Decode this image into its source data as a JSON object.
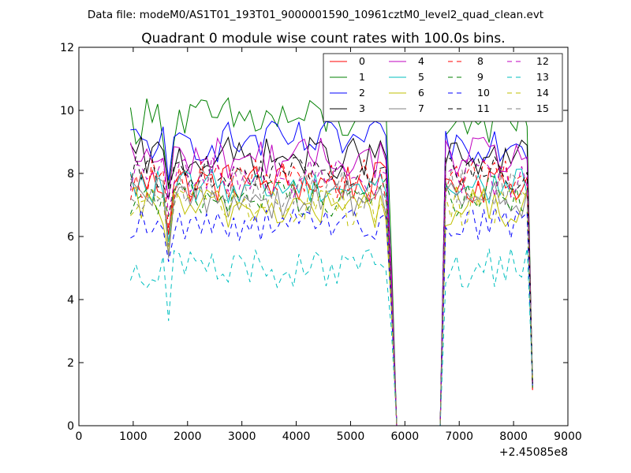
{
  "figure": {
    "suptitle": "Data file: modeM0/AS1T01_193T01_9000001590_10961cztM0_level2_quad_clean.evt"
  },
  "chart_data": {
    "type": "line",
    "title": "Quadrant 0 module wise count rates with 100.0s bins.",
    "xlabel": "",
    "ylabel": "",
    "x_offset_label": "+2.45085e8",
    "xlim": [
      0,
      9000
    ],
    "ylim": [
      0,
      12
    ],
    "x_ticks": [
      0,
      1000,
      2000,
      3000,
      4000,
      5000,
      6000,
      7000,
      8000,
      9000
    ],
    "y_ticks": [
      0,
      2,
      4,
      6,
      8,
      10,
      12
    ],
    "x_tick_labels": [
      "0",
      "1000",
      "2000",
      "3000",
      "4000",
      "5000",
      "6000",
      "7000",
      "8000",
      "9000"
    ],
    "y_tick_labels": [
      "0",
      "2",
      "4",
      "6",
      "8",
      "10",
      "12"
    ],
    "legend_position": "top-right",
    "legend_columns": 4,
    "grid": false,
    "x": [
      950,
      1050,
      1150,
      1250,
      1350,
      1450,
      1550,
      1650,
      1750,
      1850,
      1950,
      2050,
      2150,
      2250,
      2350,
      2450,
      2550,
      2650,
      2750,
      2850,
      2950,
      3050,
      3150,
      3250,
      3350,
      3450,
      3550,
      3650,
      3750,
      3850,
      3950,
      4050,
      4150,
      4250,
      4350,
      4450,
      4550,
      4650,
      4750,
      4850,
      4950,
      5050,
      5150,
      5250,
      5350,
      5450,
      5550,
      5650,
      5750,
      5850,
      5950,
      6050,
      6150,
      6250,
      6350,
      6450,
      6550,
      6650,
      6750,
      6850,
      6950,
      7050,
      7150,
      7250,
      7350,
      7450,
      7550,
      7650,
      7750,
      7850,
      7950,
      8050,
      8150,
      8250,
      8350
    ],
    "series": [
      {
        "name": "0",
        "color": "#ff0000",
        "dash": "solid",
        "base": 7.7,
        "amp": 0.3
      },
      {
        "name": "1",
        "color": "#008000",
        "dash": "solid",
        "base": 9.7,
        "amp": 0.35
      },
      {
        "name": "2",
        "color": "#0000ff",
        "dash": "solid",
        "base": 9.0,
        "amp": 0.3
      },
      {
        "name": "3",
        "color": "#000000",
        "dash": "solid",
        "base": 8.5,
        "amp": 0.3
      },
      {
        "name": "4",
        "color": "#bf00bf",
        "dash": "solid",
        "base": 8.5,
        "amp": 0.3
      },
      {
        "name": "5",
        "color": "#00bfbf",
        "dash": "solid",
        "base": 7.6,
        "amp": 0.25
      },
      {
        "name": "6",
        "color": "#bfbf00",
        "dash": "solid",
        "base": 6.9,
        "amp": 0.3
      },
      {
        "name": "7",
        "color": "#808080",
        "dash": "solid",
        "base": 7.2,
        "amp": 0.3
      },
      {
        "name": "8",
        "color": "#ff0000",
        "dash": "dashed",
        "base": 7.8,
        "amp": 0.3
      },
      {
        "name": "9",
        "color": "#008000",
        "dash": "dashed",
        "base": 7.3,
        "amp": 0.3
      },
      {
        "name": "10",
        "color": "#0000ff",
        "dash": "dashed",
        "base": 6.4,
        "amp": 0.25
      },
      {
        "name": "11",
        "color": "#000000",
        "dash": "dashed",
        "base": 8.0,
        "amp": 0.25
      },
      {
        "name": "12",
        "color": "#bf00bf",
        "dash": "dashed",
        "base": 7.9,
        "amp": 0.3
      },
      {
        "name": "13",
        "color": "#00bfbf",
        "dash": "dashed",
        "base": 5.0,
        "amp": 0.3
      },
      {
        "name": "14",
        "color": "#bfbf00",
        "dash": "dashed",
        "base": 7.0,
        "amp": 0.3
      },
      {
        "name": "15",
        "color": "#808080",
        "dash": "dashed",
        "base": 7.5,
        "amp": 0.3
      }
    ]
  }
}
